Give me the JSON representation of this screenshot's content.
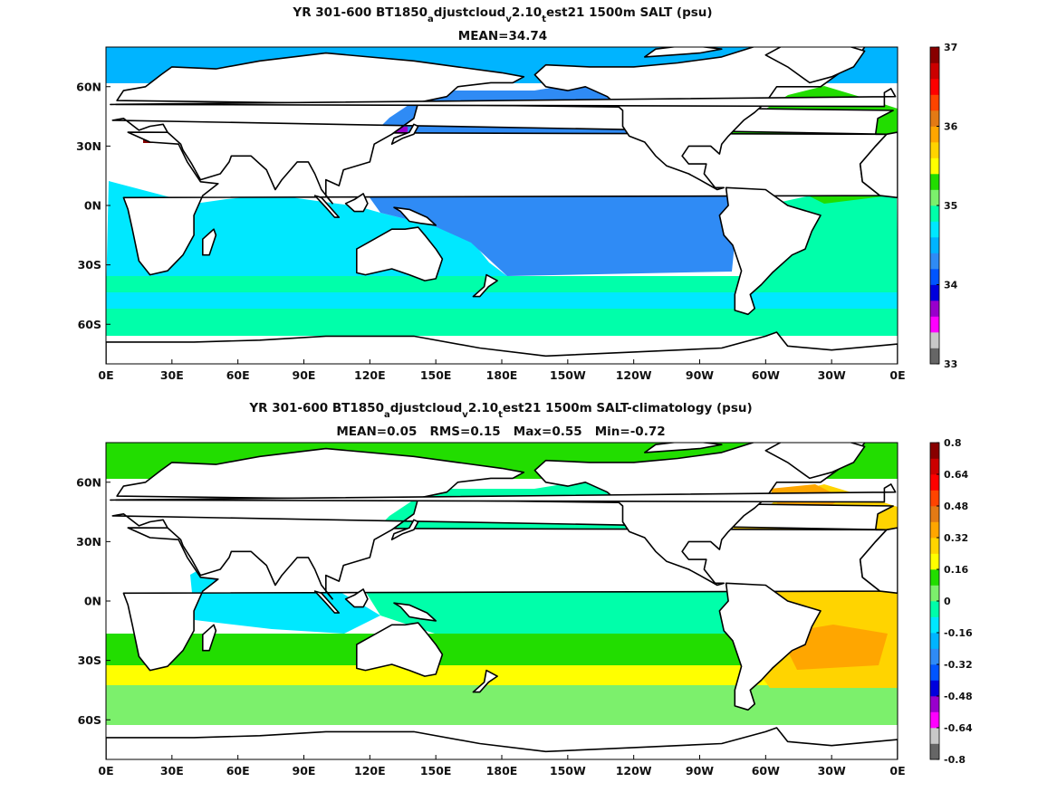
{
  "chart_data": [
    {
      "type": "heatmap",
      "title": {
        "pre": "YR 301-600 BT1850",
        "s1": "a",
        "m1": "djustcloud",
        "s2": "v",
        "m2": "2.10",
        "s3": "t",
        "post": "est21 1500m SALT (psu)"
      },
      "subtitle": "MEAN=34.74",
      "x_ticks": [
        "0E",
        "30E",
        "60E",
        "90E",
        "120E",
        "150E",
        "180E",
        "150W",
        "120W",
        "90W",
        "60W",
        "30W",
        "0E"
      ],
      "y_ticks": [
        "60N",
        "30N",
        "0N",
        "30S",
        "60S"
      ],
      "colorbar": {
        "range": [
          33,
          37
        ],
        "tick_labels": [
          "33",
          "34",
          "35",
          "36",
          "37"
        ],
        "levels": [
          {
            "from": 33.0,
            "to": 33.2,
            "color": "#666666"
          },
          {
            "from": 33.2,
            "to": 33.4,
            "color": "#c8c8c8"
          },
          {
            "from": 33.4,
            "to": 33.6,
            "color": "#ff00ff"
          },
          {
            "from": 33.6,
            "to": 33.8,
            "color": "#9900cc"
          },
          {
            "from": 33.8,
            "to": 34.0,
            "color": "#0000dd"
          },
          {
            "from": 34.0,
            "to": 34.2,
            "color": "#0055ff"
          },
          {
            "from": 34.2,
            "to": 34.4,
            "color": "#2f8bf5"
          },
          {
            "from": 34.4,
            "to": 34.6,
            "color": "#00b4ff"
          },
          {
            "from": 34.6,
            "to": 34.8,
            "color": "#00e8ff"
          },
          {
            "from": 34.8,
            "to": 35.0,
            "color": "#00ffaa"
          },
          {
            "from": 35.0,
            "to": 35.2,
            "color": "#7cf06c"
          },
          {
            "from": 35.2,
            "to": 35.4,
            "color": "#22dd00"
          },
          {
            "from": 35.4,
            "to": 35.6,
            "color": "#ffff00"
          },
          {
            "from": 35.6,
            "to": 35.8,
            "color": "#ffd400"
          },
          {
            "from": 35.8,
            "to": 36.0,
            "color": "#ffa600"
          },
          {
            "from": 36.0,
            "to": 36.2,
            "color": "#e37a14"
          },
          {
            "from": 36.2,
            "to": 36.4,
            "color": "#ff4400"
          },
          {
            "from": 36.4,
            "to": 36.6,
            "color": "#ff0000"
          },
          {
            "from": 36.6,
            "to": 36.8,
            "color": "#cc0000"
          },
          {
            "from": 36.8,
            "to": 37.0,
            "color": "#880000"
          }
        ]
      },
      "regions": [
        {
          "name": "Pacific",
          "approx_value": 34.5
        },
        {
          "name": "Indian Ocean",
          "approx_value": 34.7
        },
        {
          "name": "Southern Ocean",
          "approx_value": 34.7
        },
        {
          "name": "North Atlantic",
          "approx_value": 35.0
        },
        {
          "name": "Arctic",
          "approx_value": 34.9
        },
        {
          "name": "Mediterranean",
          "approx_value": 36.9
        }
      ]
    },
    {
      "type": "heatmap",
      "title": {
        "pre": "YR 301-600 BT1850",
        "s1": "a",
        "m1": "djustcloud",
        "s2": "v",
        "m2": "2.10",
        "s3": "t",
        "post": "est21 1500m SALT-climatology (psu)"
      },
      "subtitle": "MEAN=0.05   RMS=0.15   Max=0.55   Min=-0.72",
      "stats": {
        "mean": 0.05,
        "rms": 0.15,
        "max": 0.55,
        "min": -0.72
      },
      "x_ticks": [
        "0E",
        "30E",
        "60E",
        "90E",
        "120E",
        "150E",
        "180E",
        "150W",
        "120W",
        "90W",
        "60W",
        "30W",
        "0E"
      ],
      "y_ticks": [
        "60N",
        "30N",
        "0N",
        "30S",
        "60S"
      ],
      "colorbar": {
        "range": [
          -0.8,
          0.8
        ],
        "tick_labels": [
          "-0.8",
          "-0.64",
          "-0.48",
          "-0.32",
          "-0.16",
          "0",
          "0.16",
          "0.32",
          "0.48",
          "0.64",
          "0.8"
        ],
        "levels": [
          {
            "from": -0.8,
            "to": -0.72,
            "color": "#666666"
          },
          {
            "from": -0.72,
            "to": -0.64,
            "color": "#c8c8c8"
          },
          {
            "from": -0.64,
            "to": -0.56,
            "color": "#ff00ff"
          },
          {
            "from": -0.56,
            "to": -0.48,
            "color": "#9900cc"
          },
          {
            "from": -0.48,
            "to": -0.4,
            "color": "#0000dd"
          },
          {
            "from": -0.4,
            "to": -0.32,
            "color": "#0055ff"
          },
          {
            "from": -0.32,
            "to": -0.24,
            "color": "#2f8bf5"
          },
          {
            "from": -0.24,
            "to": -0.16,
            "color": "#00b4ff"
          },
          {
            "from": -0.16,
            "to": -0.08,
            "color": "#00e8ff"
          },
          {
            "from": -0.08,
            "to": 0.0,
            "color": "#00ffaa"
          },
          {
            "from": 0.0,
            "to": 0.08,
            "color": "#7cf06c"
          },
          {
            "from": 0.08,
            "to": 0.16,
            "color": "#22dd00"
          },
          {
            "from": 0.16,
            "to": 0.24,
            "color": "#ffff00"
          },
          {
            "from": 0.24,
            "to": 0.32,
            "color": "#ffd400"
          },
          {
            "from": 0.32,
            "to": 0.4,
            "color": "#ffa600"
          },
          {
            "from": 0.4,
            "to": 0.48,
            "color": "#e37a14"
          },
          {
            "from": 0.48,
            "to": 0.56,
            "color": "#ff4400"
          },
          {
            "from": 0.56,
            "to": 0.64,
            "color": "#ff0000"
          },
          {
            "from": 0.64,
            "to": 0.72,
            "color": "#cc0000"
          },
          {
            "from": 0.72,
            "to": 0.8,
            "color": "#880000"
          }
        ]
      },
      "regions": [
        {
          "name": "Pacific",
          "approx_value": -0.05
        },
        {
          "name": "Northern Indian Ocean",
          "approx_value": -0.15
        },
        {
          "name": "Arabian Sea",
          "approx_value": -0.3
        },
        {
          "name": "Southern Ocean",
          "approx_value": 0.1
        },
        {
          "name": "South Atlantic",
          "approx_value": 0.3
        },
        {
          "name": "North Atlantic",
          "approx_value": 0.25
        },
        {
          "name": "Gulf Stream region",
          "approx_value": -0.5
        }
      ]
    }
  ]
}
